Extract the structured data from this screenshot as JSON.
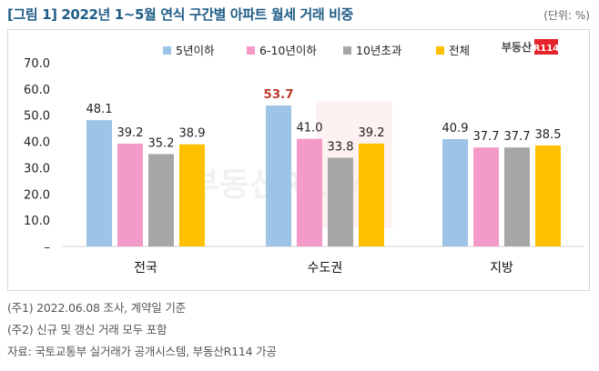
{
  "title": "[그림 1] 2022년 1~5월 연식 구간별 아파트 월세 거래 비중",
  "unit": "(단위: %)",
  "brand": {
    "text": "부동산",
    "badge": "R114",
    "badge_color": "#e5232a"
  },
  "watermark": "부동산R114",
  "notes": [
    "(주1) 2022.06.08 조사, 계약일 기준",
    "(주2) 신규 및 갱신 거래 모두 포함",
    "자료: 국토교통부 실거래가 공개시스템, 부동산R114 가공"
  ],
  "chart_data": {
    "type": "bar",
    "title": "",
    "xlabel": "",
    "ylabel": "",
    "ylim": [
      0,
      70
    ],
    "yticks": [
      "–",
      "10.0",
      "20.0",
      "30.0",
      "40.0",
      "50.0",
      "60.0",
      "70.0"
    ],
    "grid": false,
    "legend": "top",
    "categories": [
      "전국",
      "수도권",
      "지방"
    ],
    "highlight": {
      "category": "수도권",
      "series": "5년이하",
      "value": 53.7,
      "color": "#c0392b"
    },
    "series": [
      {
        "name": "5년이하",
        "color": "#9dc3e6",
        "values": [
          48.1,
          53.7,
          40.9
        ],
        "labels": [
          "48.1",
          "53.7",
          "40.9"
        ]
      },
      {
        "name": "6-10년이하",
        "color": "#f49ac8",
        "values": [
          39.2,
          41.0,
          37.7
        ],
        "labels": [
          "39.2",
          "41.0",
          "37.7"
        ]
      },
      {
        "name": "10년초과",
        "color": "#a6a6a6",
        "values": [
          35.2,
          33.8,
          37.7
        ],
        "labels": [
          "35.2",
          "33.8",
          "37.7"
        ]
      },
      {
        "name": "전체",
        "color": "#ffc000",
        "values": [
          38.9,
          39.2,
          38.5
        ],
        "labels": [
          "38.9",
          "39.2",
          "38.5"
        ]
      }
    ]
  }
}
